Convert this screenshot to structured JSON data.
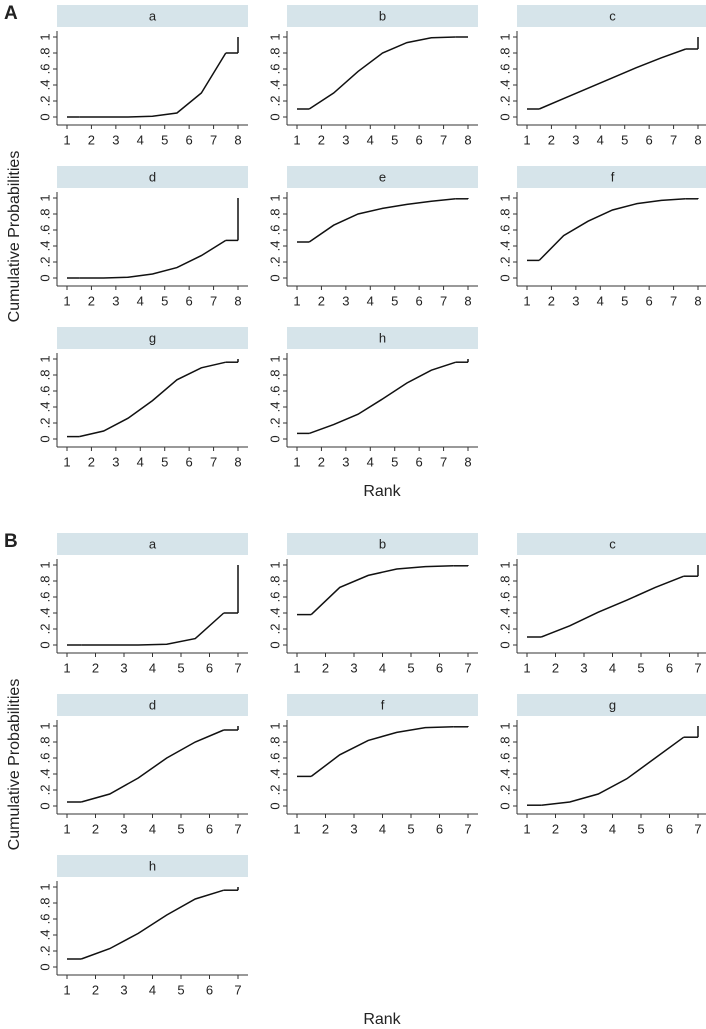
{
  "figures": [
    {
      "label": "A",
      "y_label": "Cumulative Probabilities",
      "x_label": "Rank",
      "chart_data": [
        {
          "type": "line",
          "title": "a",
          "x": [
            1,
            2,
            3,
            4,
            5,
            6,
            7,
            8
          ],
          "values": [
            0,
            0,
            0,
            0.01,
            0.05,
            0.3,
            0.8,
            1
          ],
          "xlim": [
            1,
            8
          ],
          "xticks": [
            1,
            2,
            3,
            4,
            5,
            6,
            7,
            8
          ],
          "ylim": [
            0,
            1
          ],
          "yticks": [
            0,
            {
              "value": 0.2,
              "label": ".2"
            },
            {
              "value": 0.4,
              "label": ".4"
            },
            {
              "value": 0.6,
              "label": ".6"
            },
            {
              "value": 0.8,
              "label": ".8"
            },
            1
          ],
          "color": "#111111"
        },
        {
          "type": "line",
          "title": "b",
          "x": [
            1,
            2,
            3,
            4,
            5,
            6,
            7,
            8
          ],
          "values": [
            0.1,
            0.3,
            0.57,
            0.8,
            0.93,
            0.99,
            1,
            1
          ],
          "xlim": [
            1,
            8
          ],
          "xticks": [
            1,
            2,
            3,
            4,
            5,
            6,
            7,
            8
          ],
          "ylim": [
            0,
            1
          ],
          "yticks": [
            0,
            {
              "value": 0.2,
              "label": ".2"
            },
            {
              "value": 0.4,
              "label": ".4"
            },
            {
              "value": 0.6,
              "label": ".6"
            },
            {
              "value": 0.8,
              "label": ".8"
            },
            1
          ],
          "color": "#111111"
        },
        {
          "type": "line",
          "title": "c",
          "x": [
            1,
            2,
            3,
            4,
            5,
            6,
            7,
            8
          ],
          "values": [
            0.1,
            0.23,
            0.36,
            0.49,
            0.62,
            0.74,
            0.85,
            1
          ],
          "xlim": [
            1,
            8
          ],
          "xticks": [
            1,
            2,
            3,
            4,
            5,
            6,
            7,
            8
          ],
          "ylim": [
            0,
            1
          ],
          "yticks": [
            0,
            {
              "value": 0.2,
              "label": ".2"
            },
            {
              "value": 0.4,
              "label": ".4"
            },
            {
              "value": 0.6,
              "label": ".6"
            },
            {
              "value": 0.8,
              "label": ".8"
            },
            1
          ],
          "color": "#111111"
        },
        {
          "type": "line",
          "title": "d",
          "x": [
            1,
            2,
            3,
            4,
            5,
            6,
            7,
            8
          ],
          "values": [
            0,
            0,
            0.01,
            0.05,
            0.13,
            0.28,
            0.47,
            1
          ],
          "xlim": [
            1,
            8
          ],
          "xticks": [
            1,
            2,
            3,
            4,
            5,
            6,
            7,
            8
          ],
          "ylim": [
            0,
            1
          ],
          "yticks": [
            0,
            {
              "value": 0.2,
              "label": ".2"
            },
            {
              "value": 0.4,
              "label": ".4"
            },
            {
              "value": 0.6,
              "label": ".6"
            },
            {
              "value": 0.8,
              "label": ".8"
            },
            1
          ],
          "color": "#111111"
        },
        {
          "type": "line",
          "title": "e",
          "x": [
            1,
            2,
            3,
            4,
            5,
            6,
            7,
            8
          ],
          "values": [
            0.45,
            0.66,
            0.8,
            0.87,
            0.92,
            0.96,
            0.99,
            1
          ],
          "xlim": [
            1,
            8
          ],
          "xticks": [
            1,
            2,
            3,
            4,
            5,
            6,
            7,
            8
          ],
          "ylim": [
            0,
            1
          ],
          "yticks": [
            0,
            {
              "value": 0.2,
              "label": ".2"
            },
            {
              "value": 0.4,
              "label": ".4"
            },
            {
              "value": 0.6,
              "label": ".6"
            },
            {
              "value": 0.8,
              "label": ".8"
            },
            1
          ],
          "color": "#111111"
        },
        {
          "type": "line",
          "title": "f",
          "x": [
            1,
            2,
            3,
            4,
            5,
            6,
            7,
            8
          ],
          "values": [
            0.22,
            0.53,
            0.71,
            0.85,
            0.93,
            0.97,
            0.99,
            1
          ],
          "xlim": [
            1,
            8
          ],
          "xticks": [
            1,
            2,
            3,
            4,
            5,
            6,
            7,
            8
          ],
          "ylim": [
            0,
            1
          ],
          "yticks": [
            0,
            {
              "value": 0.2,
              "label": ".2"
            },
            {
              "value": 0.4,
              "label": ".4"
            },
            {
              "value": 0.6,
              "label": ".6"
            },
            {
              "value": 0.8,
              "label": ".8"
            },
            1
          ],
          "color": "#111111"
        },
        {
          "type": "line",
          "title": "g",
          "x": [
            1,
            2,
            3,
            4,
            5,
            6,
            7,
            8
          ],
          "values": [
            0.03,
            0.1,
            0.26,
            0.48,
            0.74,
            0.89,
            0.96,
            1
          ],
          "xlim": [
            1,
            8
          ],
          "xticks": [
            1,
            2,
            3,
            4,
            5,
            6,
            7,
            8
          ],
          "ylim": [
            0,
            1
          ],
          "yticks": [
            0,
            {
              "value": 0.2,
              "label": ".2"
            },
            {
              "value": 0.4,
              "label": ".4"
            },
            {
              "value": 0.6,
              "label": ".6"
            },
            {
              "value": 0.8,
              "label": ".8"
            },
            1
          ],
          "color": "#111111"
        },
        {
          "type": "line",
          "title": "h",
          "x": [
            1,
            2,
            3,
            4,
            5,
            6,
            7,
            8
          ],
          "values": [
            0.07,
            0.18,
            0.31,
            0.5,
            0.7,
            0.86,
            0.96,
            1
          ],
          "xlim": [
            1,
            8
          ],
          "xticks": [
            1,
            2,
            3,
            4,
            5,
            6,
            7,
            8
          ],
          "ylim": [
            0,
            1
          ],
          "yticks": [
            0,
            {
              "value": 0.2,
              "label": ".2"
            },
            {
              "value": 0.4,
              "label": ".4"
            },
            {
              "value": 0.6,
              "label": ".6"
            },
            {
              "value": 0.8,
              "label": ".8"
            },
            1
          ],
          "color": "#111111"
        }
      ]
    },
    {
      "label": "B",
      "y_label": "Cumulative Probabilities",
      "x_label": "Rank",
      "chart_data": [
        {
          "type": "line",
          "title": "a",
          "x": [
            1,
            2,
            3,
            4,
            5,
            6,
            7
          ],
          "values": [
            0,
            0,
            0,
            0.01,
            0.08,
            0.4,
            1
          ],
          "xlim": [
            1,
            7
          ],
          "xticks": [
            1,
            2,
            3,
            4,
            5,
            6,
            7
          ],
          "ylim": [
            0,
            1
          ],
          "yticks": [
            0,
            {
              "value": 0.2,
              "label": ".2"
            },
            {
              "value": 0.4,
              "label": ".4"
            },
            {
              "value": 0.6,
              "label": ".6"
            },
            {
              "value": 0.8,
              "label": ".8"
            },
            1
          ],
          "color": "#111111"
        },
        {
          "type": "line",
          "title": "b",
          "x": [
            1,
            2,
            3,
            4,
            5,
            6,
            7
          ],
          "values": [
            0.38,
            0.72,
            0.87,
            0.95,
            0.98,
            0.99,
            1
          ],
          "xlim": [
            1,
            7
          ],
          "xticks": [
            1,
            2,
            3,
            4,
            5,
            6,
            7
          ],
          "ylim": [
            0,
            1
          ],
          "yticks": [
            0,
            {
              "value": 0.2,
              "label": ".2"
            },
            {
              "value": 0.4,
              "label": ".4"
            },
            {
              "value": 0.6,
              "label": ".6"
            },
            {
              "value": 0.8,
              "label": ".8"
            },
            1
          ],
          "color": "#111111"
        },
        {
          "type": "line",
          "title": "c",
          "x": [
            1,
            2,
            3,
            4,
            5,
            6,
            7
          ],
          "values": [
            0.1,
            0.24,
            0.41,
            0.56,
            0.72,
            0.86,
            1
          ],
          "xlim": [
            1,
            7
          ],
          "xticks": [
            1,
            2,
            3,
            4,
            5,
            6,
            7
          ],
          "ylim": [
            0,
            1
          ],
          "yticks": [
            0,
            {
              "value": 0.2,
              "label": ".2"
            },
            {
              "value": 0.4,
              "label": ".4"
            },
            {
              "value": 0.6,
              "label": ".6"
            },
            {
              "value": 0.8,
              "label": ".8"
            },
            1
          ],
          "color": "#111111"
        },
        {
          "type": "line",
          "title": "d",
          "x": [
            1,
            2,
            3,
            4,
            5,
            6,
            7
          ],
          "values": [
            0.05,
            0.15,
            0.35,
            0.6,
            0.8,
            0.95,
            1
          ],
          "xlim": [
            1,
            7
          ],
          "xticks": [
            1,
            2,
            3,
            4,
            5,
            6,
            7
          ],
          "ylim": [
            0,
            1
          ],
          "yticks": [
            0,
            {
              "value": 0.2,
              "label": ".2"
            },
            {
              "value": 0.4,
              "label": ".4"
            },
            {
              "value": 0.6,
              "label": ".6"
            },
            {
              "value": 0.8,
              "label": ".8"
            },
            1
          ],
          "color": "#111111"
        },
        {
          "type": "line",
          "title": "f",
          "x": [
            1,
            2,
            3,
            4,
            5,
            6,
            7
          ],
          "values": [
            0.37,
            0.64,
            0.82,
            0.92,
            0.98,
            0.99,
            1
          ],
          "xlim": [
            1,
            7
          ],
          "xticks": [
            1,
            2,
            3,
            4,
            5,
            6,
            7
          ],
          "ylim": [
            0,
            1
          ],
          "yticks": [
            0,
            {
              "value": 0.2,
              "label": ".2"
            },
            {
              "value": 0.4,
              "label": ".4"
            },
            {
              "value": 0.6,
              "label": ".6"
            },
            {
              "value": 0.8,
              "label": ".8"
            },
            1
          ],
          "color": "#111111"
        },
        {
          "type": "line",
          "title": "g",
          "x": [
            1,
            2,
            3,
            4,
            5,
            6,
            7
          ],
          "values": [
            0.01,
            0.05,
            0.15,
            0.34,
            0.6,
            0.86,
            1
          ],
          "xlim": [
            1,
            7
          ],
          "xticks": [
            1,
            2,
            3,
            4,
            5,
            6,
            7
          ],
          "ylim": [
            0,
            1
          ],
          "yticks": [
            0,
            {
              "value": 0.2,
              "label": ".2"
            },
            {
              "value": 0.4,
              "label": ".4"
            },
            {
              "value": 0.6,
              "label": ".6"
            },
            {
              "value": 0.8,
              "label": ".8"
            },
            1
          ],
          "color": "#111111"
        },
        {
          "type": "line",
          "title": "h",
          "x": [
            1,
            2,
            3,
            4,
            5,
            6,
            7
          ],
          "values": [
            0.1,
            0.23,
            0.42,
            0.65,
            0.85,
            0.96,
            1
          ],
          "xlim": [
            1,
            7
          ],
          "xticks": [
            1,
            2,
            3,
            4,
            5,
            6,
            7
          ],
          "ylim": [
            0,
            1
          ],
          "yticks": [
            0,
            {
              "value": 0.2,
              "label": ".2"
            },
            {
              "value": 0.4,
              "label": ".4"
            },
            {
              "value": 0.6,
              "label": ".6"
            },
            {
              "value": 0.8,
              "label": ".8"
            },
            1
          ],
          "color": "#111111"
        }
      ]
    }
  ]
}
